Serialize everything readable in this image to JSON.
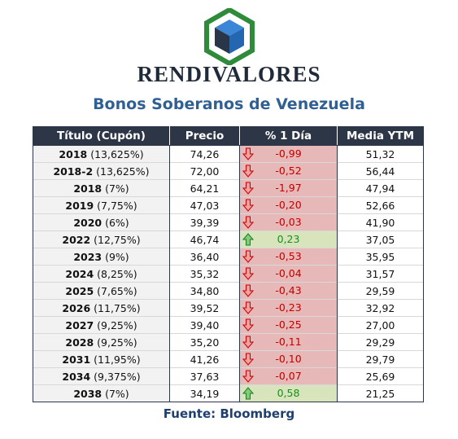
{
  "brand": "RENDIVALORES",
  "subtitle": "Bonos Soberanos de Venezuela",
  "source": "Fuente: Bloomberg",
  "colors": {
    "header_bg": "#2d3646",
    "title_color": "#2f5f93",
    "negative_bg": "#e6b8b7",
    "negative_text": "#c00000",
    "positive_bg": "#d8e4bc",
    "positive_text": "#1e8a1e",
    "logo_green": "#2e8b3a",
    "logo_blue": "#2c6db5"
  },
  "icons": {
    "down": "arrow-down-icon",
    "up": "arrow-up-icon"
  },
  "table": {
    "headers": [
      "Título (Cupón)",
      "Precio",
      "% 1 Día",
      "Media YTM"
    ],
    "rows": [
      {
        "year": "2018",
        "coupon": "(13,625%)",
        "price": "74,26",
        "change": "-0,99",
        "direction": "down",
        "ytm": "51,32"
      },
      {
        "year": "2018-2",
        "coupon": "(13,625%)",
        "price": "72,00",
        "change": "-0,52",
        "direction": "down",
        "ytm": "56,44"
      },
      {
        "year": "2018",
        "coupon": "(7%)",
        "price": "64,21",
        "change": "-1,97",
        "direction": "down",
        "ytm": "47,94"
      },
      {
        "year": "2019",
        "coupon": "(7,75%)",
        "price": "47,03",
        "change": "-0,20",
        "direction": "down",
        "ytm": "52,66"
      },
      {
        "year": "2020",
        "coupon": "(6%)",
        "price": "39,39",
        "change": "-0,03",
        "direction": "down",
        "ytm": "41,90"
      },
      {
        "year": "2022",
        "coupon": "(12,75%)",
        "price": "46,74",
        "change": "0,23",
        "direction": "up",
        "ytm": "37,05"
      },
      {
        "year": "2023",
        "coupon": "(9%)",
        "price": "36,40",
        "change": "-0,53",
        "direction": "down",
        "ytm": "35,95"
      },
      {
        "year": "2024",
        "coupon": "(8,25%)",
        "price": "35,32",
        "change": "-0,04",
        "direction": "down",
        "ytm": "31,57"
      },
      {
        "year": "2025",
        "coupon": "(7,65%)",
        "price": "34,80",
        "change": "-0,43",
        "direction": "down",
        "ytm": "29,59"
      },
      {
        "year": "2026",
        "coupon": "(11,75%)",
        "price": "39,52",
        "change": "-0,23",
        "direction": "down",
        "ytm": "32,92"
      },
      {
        "year": "2027",
        "coupon": "(9,25%)",
        "price": "39,40",
        "change": "-0,25",
        "direction": "down",
        "ytm": "27,00"
      },
      {
        "year": "2028",
        "coupon": "(9,25%)",
        "price": "35,20",
        "change": "-0,11",
        "direction": "down",
        "ytm": "29,29"
      },
      {
        "year": "2031",
        "coupon": "(11,95%)",
        "price": "41,26",
        "change": "-0,10",
        "direction": "down",
        "ytm": "29,79"
      },
      {
        "year": "2034",
        "coupon": "(9,375%)",
        "price": "37,63",
        "change": "-0,07",
        "direction": "down",
        "ytm": "25,69"
      },
      {
        "year": "2038",
        "coupon": "(7%)",
        "price": "34,19",
        "change": "0,58",
        "direction": "up",
        "ytm": "21,25"
      }
    ]
  }
}
